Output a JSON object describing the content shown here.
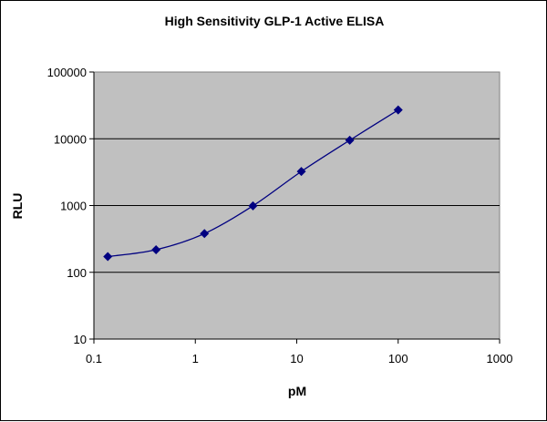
{
  "chart_data": {
    "type": "line",
    "title": "High Sensitivity GLP-1 Active ELISA",
    "xlabel": "pM",
    "ylabel": "RLU",
    "x_scale": "log",
    "y_scale": "log",
    "xlim": [
      0.1,
      1000
    ],
    "ylim": [
      10,
      100000
    ],
    "x_ticks": [
      "0.1",
      "1",
      "10",
      "100",
      "1000"
    ],
    "y_ticks": [
      "10",
      "100",
      "1000",
      "10000",
      "100000"
    ],
    "grid": "horizontal",
    "legend": "none",
    "plot_background": "#c0c0c0",
    "series": [
      {
        "color": "#000080",
        "marker": "diamond",
        "smoothed": true,
        "x": [
          0.137,
          0.41,
          1.23,
          3.7,
          11.1,
          33.3,
          100
        ],
        "y": [
          172,
          218,
          380,
          990,
          3240,
          9500,
          27000
        ]
      }
    ]
  }
}
